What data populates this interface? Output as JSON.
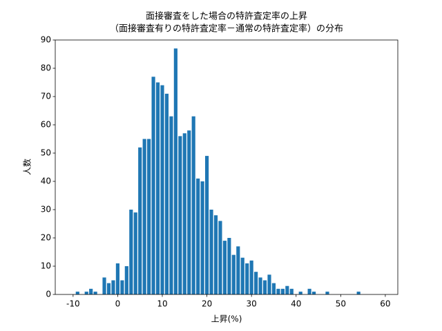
{
  "chart_data": {
    "type": "bar",
    "title": [
      "面接審査をした場合の特許査定率の上昇",
      "（面接審査有りの特許査定率－通常の特許査定率）の分布"
    ],
    "xlabel": "上昇(%)",
    "ylabel": "人数",
    "x": [
      -9,
      -7,
      -6,
      -5,
      -3,
      -2,
      -1,
      0,
      1,
      2,
      3,
      4,
      5,
      6,
      7,
      8,
      9,
      10,
      11,
      12,
      13,
      14,
      15,
      16,
      17,
      18,
      19,
      20,
      21,
      22,
      23,
      24,
      25,
      26,
      27,
      28,
      29,
      30,
      31,
      32,
      33,
      34,
      35,
      36,
      37,
      38,
      39,
      41,
      43,
      44,
      47,
      54
    ],
    "values": [
      1,
      1,
      2,
      1,
      6,
      4,
      5,
      11,
      5,
      10,
      30,
      29,
      52,
      55,
      55,
      77,
      75,
      74,
      71,
      63,
      87,
      56,
      57,
      58,
      63,
      41,
      40,
      49,
      30,
      28,
      26,
      19,
      20,
      14,
      17,
      13,
      11,
      12,
      8,
      6,
      5,
      7,
      4,
      2,
      2,
      3,
      2,
      1,
      2,
      1,
      1,
      1
    ],
    "color": "#1f77b4",
    "xlim": [
      -14,
      62.8
    ],
    "xticks": [
      -10,
      0,
      10,
      20,
      30,
      40,
      50,
      60
    ],
    "ylim": [
      0,
      90
    ],
    "yticks": [
      0,
      10,
      20,
      30,
      40,
      50,
      60,
      70,
      80,
      90
    ]
  }
}
